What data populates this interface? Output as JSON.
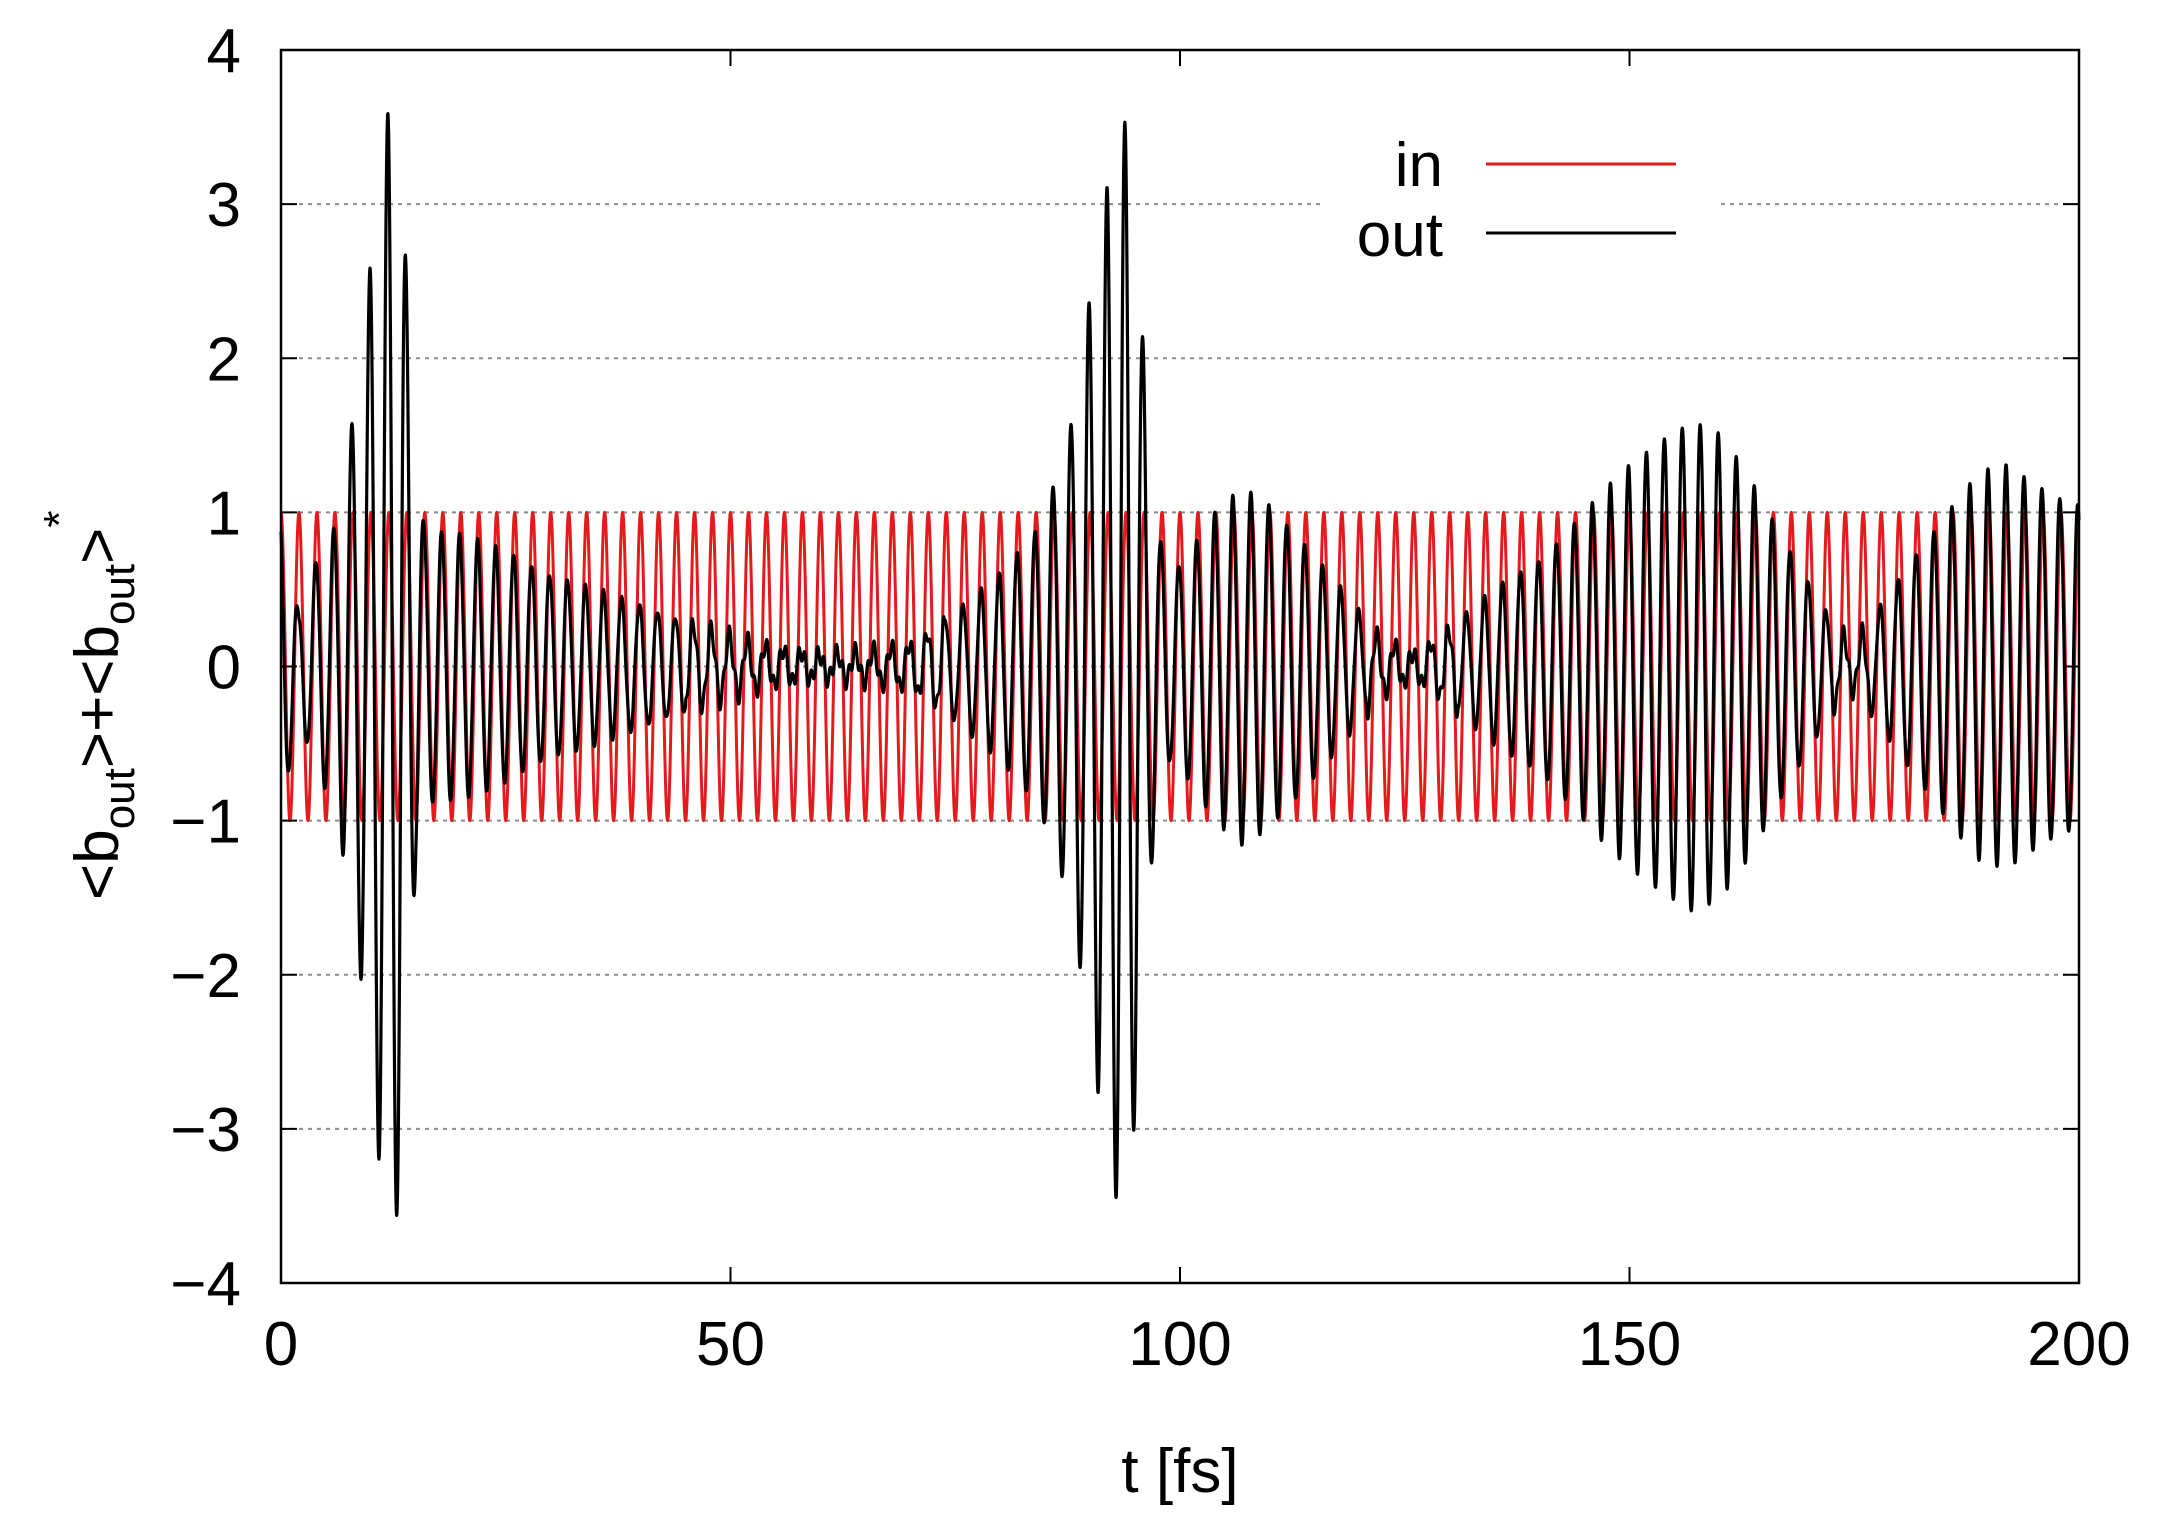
{
  "chart_data": {
    "type": "line",
    "title": "",
    "xlabel": "t [fs]",
    "ylabel_parts": {
      "a_open": "<b",
      "a_sub": "out",
      "a_close": ">+<b",
      "b_sub": "out",
      "b_close": ">",
      "sup": "*"
    },
    "xlim": [
      0,
      200
    ],
    "ylim": [
      -4,
      4
    ],
    "x_ticks": [
      {
        "value": 0,
        "label": "0"
      },
      {
        "value": 50,
        "label": "50"
      },
      {
        "value": 100,
        "label": "100"
      },
      {
        "value": 150,
        "label": "150"
      },
      {
        "value": 200,
        "label": "200"
      }
    ],
    "y_ticks": [
      {
        "value": 4,
        "label": "4"
      },
      {
        "value": 3,
        "label": "3"
      },
      {
        "value": 2,
        "label": "2"
      },
      {
        "value": 1,
        "label": "1"
      },
      {
        "value": 0,
        "label": "0"
      },
      {
        "value": -1,
        "label": "−1"
      },
      {
        "value": -2,
        "label": "−2"
      },
      {
        "value": -3,
        "label": "−3"
      },
      {
        "value": -4,
        "label": "−4"
      }
    ],
    "grid": "horizontal dashed",
    "legend_position": "top-right",
    "series": [
      {
        "name": "in",
        "color": "#e41a1c",
        "description_type": "cosine",
        "amplitude": 1.0,
        "period_fs": 2.0
      },
      {
        "name": "out",
        "color": "#000000",
        "carrier_period_fs": 2.0,
        "envelope": [
          [
            0,
            0.95
          ],
          [
            2,
            0.35
          ],
          [
            4,
            0.7
          ],
          [
            6,
            0.9
          ],
          [
            8,
            1.6
          ],
          [
            9.5,
            2.3
          ],
          [
            10.5,
            3.0
          ],
          [
            11.5,
            3.5
          ],
          [
            12.3,
            3.7
          ],
          [
            13.2,
            3.5
          ],
          [
            14,
            2.5
          ],
          [
            15,
            1.3
          ],
          [
            16,
            0.9
          ],
          [
            20,
            0.85
          ],
          [
            25,
            0.75
          ],
          [
            30,
            0.6
          ],
          [
            35,
            0.5
          ],
          [
            40,
            0.4
          ],
          [
            45,
            0.3
          ],
          [
            50,
            0.2
          ],
          [
            55,
            0.12
          ],
          [
            60,
            0.08
          ],
          [
            65,
            0.1
          ],
          [
            70,
            0.15
          ],
          [
            75,
            0.35
          ],
          [
            80,
            0.6
          ],
          [
            84,
            0.9
          ],
          [
            86,
            1.2
          ],
          [
            88,
            1.6
          ],
          [
            89.5,
            2.2
          ],
          [
            91,
            2.8
          ],
          [
            92.5,
            3.3
          ],
          [
            93.5,
            3.65
          ],
          [
            94.5,
            3.3
          ],
          [
            95.5,
            2.5
          ],
          [
            96.5,
            1.5
          ],
          [
            97.5,
            0.9
          ],
          [
            99,
            0.6
          ],
          [
            101,
            0.75
          ],
          [
            104,
            1.0
          ],
          [
            107,
            1.15
          ],
          [
            110,
            1.05
          ],
          [
            114,
            0.8
          ],
          [
            118,
            0.5
          ],
          [
            122,
            0.2
          ],
          [
            126,
            0.08
          ],
          [
            130,
            0.25
          ],
          [
            135,
            0.5
          ],
          [
            140,
            0.7
          ],
          [
            145,
            1.0
          ],
          [
            150,
            1.3
          ],
          [
            154,
            1.5
          ],
          [
            157,
            1.6
          ],
          [
            160,
            1.5
          ],
          [
            163,
            1.25
          ],
          [
            166,
            0.95
          ],
          [
            170,
            0.55
          ],
          [
            173,
            0.25
          ],
          [
            175,
            0.15
          ],
          [
            178,
            0.4
          ],
          [
            182,
            0.75
          ],
          [
            186,
            1.05
          ],
          [
            189,
            1.25
          ],
          [
            192,
            1.3
          ],
          [
            195,
            1.2
          ],
          [
            198,
            1.1
          ],
          [
            200,
            1.05
          ]
        ]
      }
    ]
  }
}
